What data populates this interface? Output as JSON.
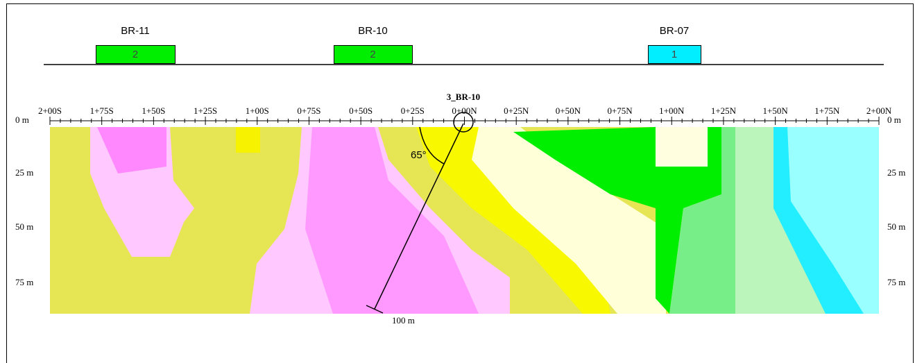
{
  "boreholes": [
    {
      "label": "BR-11",
      "count": 2,
      "color": "#00ee00"
    },
    {
      "label": "BR-10",
      "count": 2,
      "color": "#00ee00"
    },
    {
      "label": "BR-07",
      "count": 1,
      "color": "#00eeff"
    }
  ],
  "section": {
    "title": "3_BR-10",
    "stations": [
      "2+00S",
      "1+75S",
      "1+50S",
      "1+25S",
      "1+00S",
      "0+75S",
      "0+50S",
      "0+25S",
      "0+00N",
      "0+25N",
      "0+50N",
      "0+75N",
      "1+00N",
      "1+25N",
      "1+50N",
      "1+75N",
      "2+00N"
    ],
    "depths": [
      "0 m",
      "25 m",
      "50 m",
      "75 m"
    ],
    "angle": "65°",
    "hole_length": "100 m"
  }
}
